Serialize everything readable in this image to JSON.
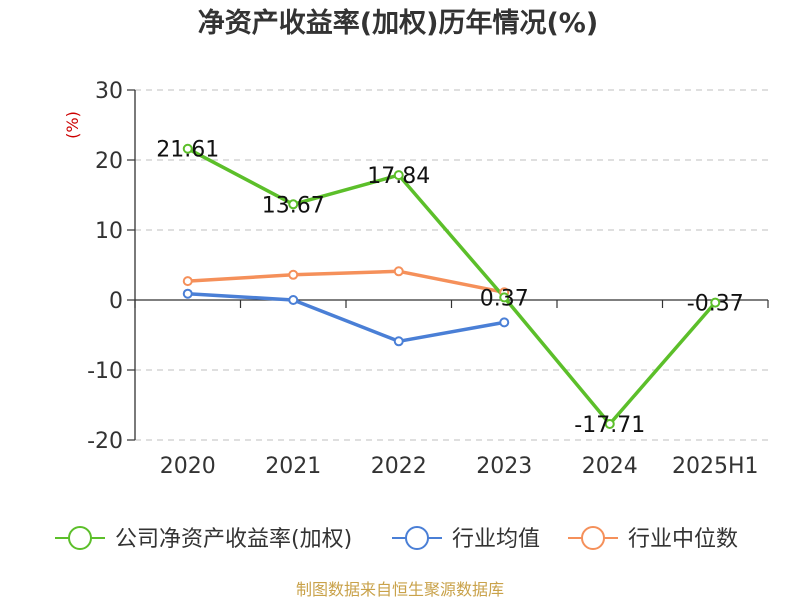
{
  "chart_data": {
    "type": "line",
    "title": "净资产收益率(加权)历年情况(%)",
    "ylabel": "(%)",
    "categories": [
      "2020",
      "2021",
      "2022",
      "2023",
      "2024",
      "2025H1"
    ],
    "ylim": [
      -20,
      30
    ],
    "yticks": [
      30,
      20,
      10,
      0,
      -10,
      -20
    ],
    "grid": true,
    "legend_position": "bottom",
    "series": [
      {
        "name": "公司净资产收益率(加权)",
        "color": "#5cbf2a",
        "values": [
          21.61,
          13.67,
          17.84,
          0.37,
          -17.71,
          -0.37
        ],
        "labels": [
          "21.61",
          "13.67",
          "17.84",
          "0.37",
          "-17.71",
          "-0.37"
        ]
      },
      {
        "name": "行业均值",
        "color": "#4a7fd6",
        "values": [
          0.9,
          0.0,
          -5.9,
          -3.2,
          null,
          null
        ]
      },
      {
        "name": "行业中位数",
        "color": "#f5905a",
        "values": [
          2.7,
          3.6,
          4.1,
          1.1,
          null,
          null
        ]
      }
    ]
  },
  "footer": {
    "source": "制图数据来自恒生聚源数据库"
  }
}
